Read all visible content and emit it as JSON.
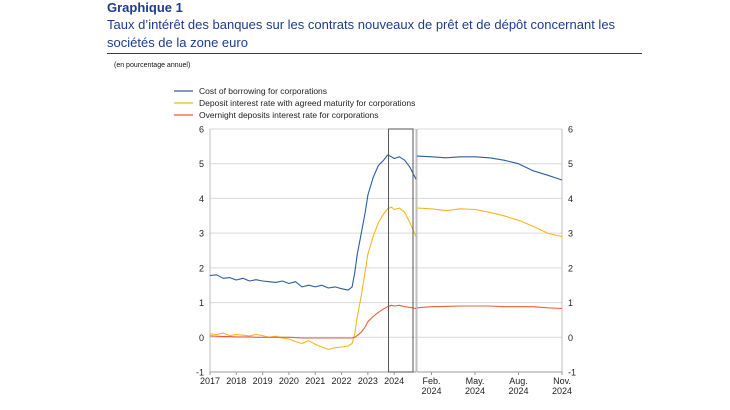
{
  "header": {
    "title": "Graphique 1",
    "subtitle": "Taux d’intérêt des banques sur les contrats nouveaux de prêt et de dépôt concernant les sociétés de la zone euro",
    "unit_note": "(en pourcentage annuel)"
  },
  "chart_data": {
    "type": "line",
    "ylim": [
      -1,
      6
    ],
    "yticks": [
      -1,
      0,
      1,
      2,
      3,
      4,
      5,
      6
    ],
    "legend_position": "top-left",
    "series": [
      {
        "key": "borrowing",
        "name": "Cost of borrowing for corporations",
        "color": "#2e5d9f"
      },
      {
        "key": "deposit_agreed",
        "name": "Deposit interest rate with agreed maturity for corporations",
        "color": "#f2b81c"
      },
      {
        "key": "overnight",
        "name": "Overnight deposits interest rate for corporations",
        "color": "#e8603c"
      }
    ],
    "left_panel": {
      "xlim": [
        2017.0,
        2024.83
      ],
      "xtick_labels": [
        "2017",
        "2018",
        "2019",
        "2020",
        "2021",
        "2022",
        "2023",
        "2024"
      ],
      "xtick_values": [
        2017,
        2018,
        2019,
        2020,
        2021,
        2022,
        2023,
        2024
      ],
      "highlight_range": [
        2023.9,
        2024.83
      ],
      "x": [
        2017.0,
        2017.25,
        2017.5,
        2017.75,
        2018.0,
        2018.25,
        2018.5,
        2018.75,
        2019.0,
        2019.25,
        2019.5,
        2019.75,
        2020.0,
        2020.25,
        2020.5,
        2020.75,
        2021.0,
        2021.25,
        2021.5,
        2021.75,
        2022.0,
        2022.25,
        2022.4,
        2022.5,
        2022.6,
        2022.75,
        2022.9,
        2023.0,
        2023.2,
        2023.4,
        2023.6,
        2023.75,
        2023.9,
        2024.0,
        2024.2,
        2024.4,
        2024.6,
        2024.83
      ],
      "borrowing": [
        1.78,
        1.8,
        1.7,
        1.72,
        1.65,
        1.7,
        1.62,
        1.66,
        1.62,
        1.6,
        1.58,
        1.62,
        1.55,
        1.6,
        1.45,
        1.5,
        1.45,
        1.5,
        1.42,
        1.45,
        1.4,
        1.36,
        1.45,
        1.85,
        2.4,
        3.0,
        3.6,
        4.1,
        4.6,
        4.95,
        5.1,
        5.25,
        5.2,
        5.15,
        5.2,
        5.1,
        4.9,
        4.55
      ],
      "deposit_agreed": [
        0.1,
        0.08,
        0.12,
        0.05,
        0.08,
        0.06,
        0.04,
        0.08,
        0.05,
        0.0,
        0.03,
        -0.02,
        -0.05,
        -0.12,
        -0.18,
        -0.1,
        -0.2,
        -0.28,
        -0.35,
        -0.3,
        -0.28,
        -0.25,
        -0.18,
        0.1,
        0.6,
        1.2,
        1.9,
        2.4,
        2.9,
        3.3,
        3.55,
        3.7,
        3.75,
        3.68,
        3.72,
        3.6,
        3.3,
        2.9
      ],
      "overnight": [
        0.04,
        0.03,
        0.02,
        0.02,
        0.01,
        0.01,
        0.01,
        0.0,
        0.0,
        0.0,
        0.0,
        0.0,
        0.0,
        -0.01,
        -0.02,
        -0.02,
        -0.02,
        -0.02,
        -0.02,
        -0.02,
        -0.02,
        -0.02,
        -0.02,
        0.0,
        0.05,
        0.15,
        0.3,
        0.45,
        0.6,
        0.72,
        0.82,
        0.88,
        0.92,
        0.9,
        0.92,
        0.88,
        0.86,
        0.83
      ]
    },
    "right_panel": {
      "xlim": [
        0,
        10
      ],
      "xtick_labels": [
        [
          "Feb.",
          "2024"
        ],
        [
          "May.",
          "2024"
        ],
        [
          "Aug.",
          "2024"
        ],
        [
          "Nov.",
          "2024"
        ]
      ],
      "xtick_values": [
        1,
        4,
        7,
        10
      ],
      "x": [
        0,
        1,
        2,
        3,
        4,
        5,
        6,
        7,
        8,
        9,
        10
      ],
      "borrowing": [
        5.22,
        5.2,
        5.17,
        5.2,
        5.2,
        5.17,
        5.1,
        5.0,
        4.8,
        4.67,
        4.53
      ],
      "deposit_agreed": [
        3.72,
        3.7,
        3.65,
        3.7,
        3.68,
        3.6,
        3.5,
        3.37,
        3.2,
        3.0,
        2.9
      ],
      "overnight": [
        0.85,
        0.88,
        0.89,
        0.9,
        0.9,
        0.9,
        0.88,
        0.88,
        0.88,
        0.85,
        0.83
      ]
    }
  }
}
